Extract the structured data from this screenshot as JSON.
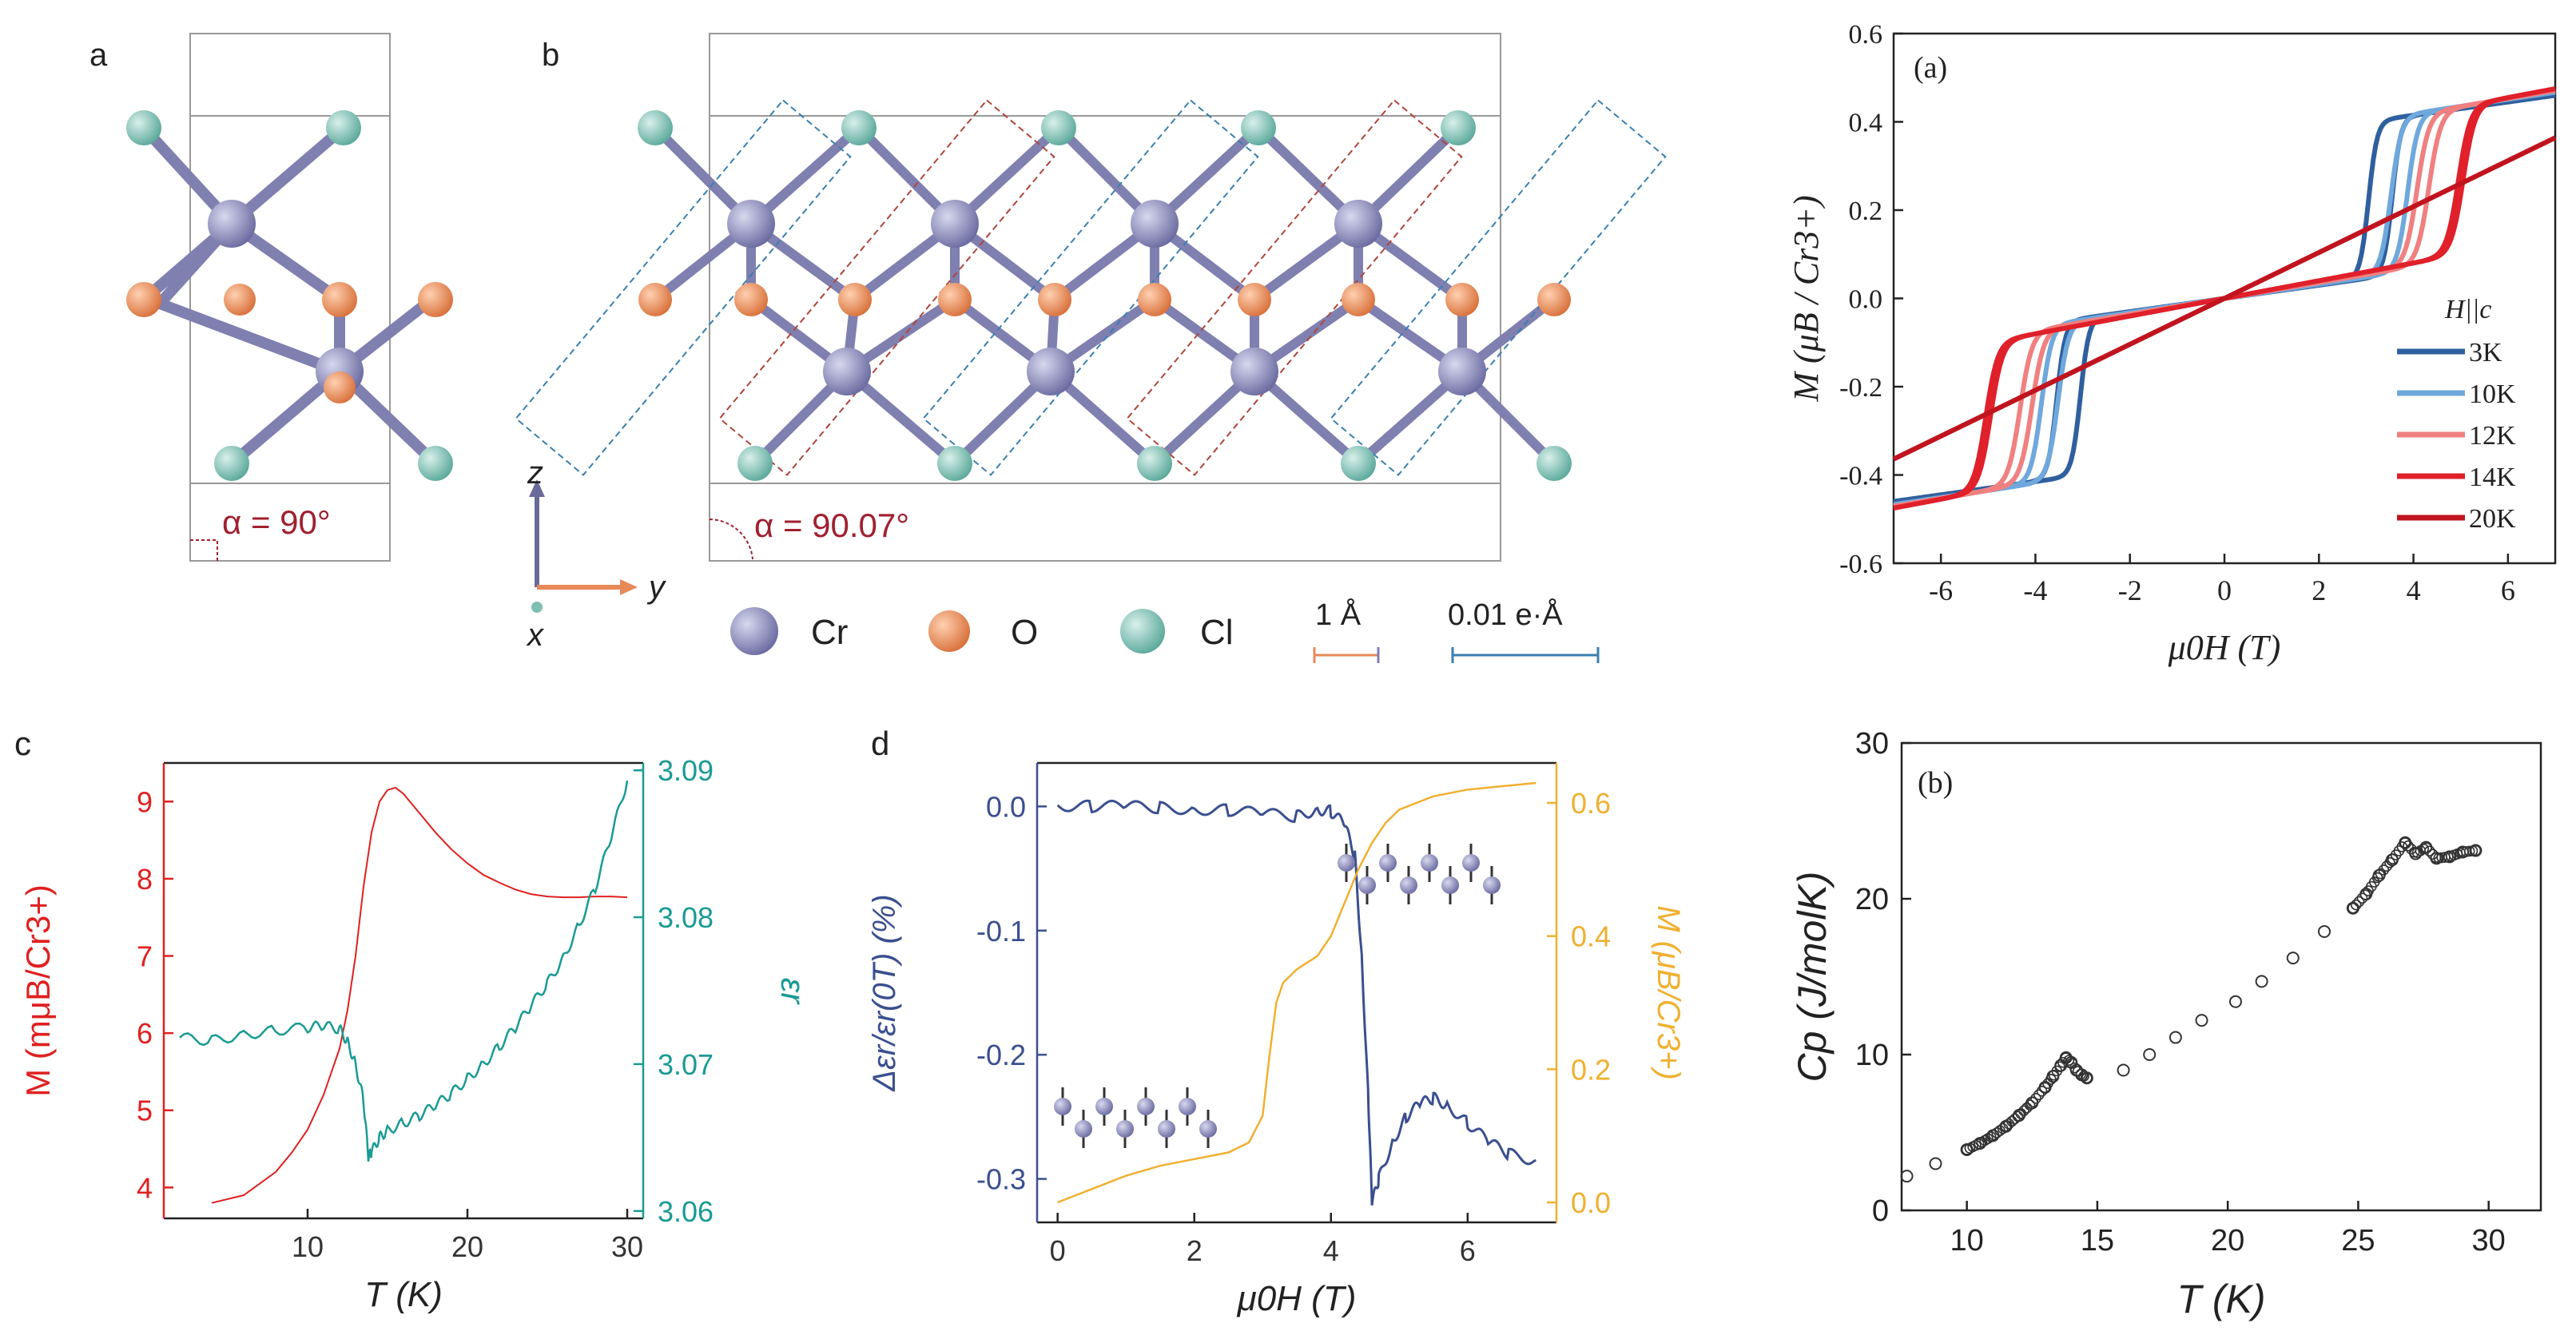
{
  "colors": {
    "cr": "#7f7fb0",
    "o": "#e8895a",
    "cl": "#7fbfb3",
    "red": "#e02020",
    "teal": "#1a9a94",
    "navy": "#3a4f8f",
    "orange": "#f0b030",
    "darkred": "#a02030",
    "blue3k": "#2f5f9e",
    "blue10k": "#6fa8dc",
    "pink12k": "#f08080",
    "red14k": "#e0202a",
    "dred20k": "#c0141e"
  },
  "panel_a": {
    "label": "a",
    "angle": "α = 90°"
  },
  "panel_b": {
    "label": "b",
    "angle": "α = 90.07°"
  },
  "axes_triad": {
    "z": "z",
    "y": "y",
    "x": "x"
  },
  "legend_atoms": {
    "cr": "Cr",
    "o": "O",
    "cl": "Cl",
    "scale_len": "1 Å",
    "scale_charge": "0.01 e·Å"
  },
  "chart_data": [
    {
      "id": "panel-c",
      "type": "line",
      "panel_label": "c",
      "xlabel": "T (K)",
      "xlim": [
        1,
        31
      ],
      "xticks": [
        10,
        20,
        30
      ],
      "ylabel_left": "M (mμB/Cr3+)",
      "ylim_left": [
        3.6,
        9.5
      ],
      "yticks_left": [
        4,
        5,
        6,
        7,
        8,
        9
      ],
      "ylabel_right": "εr",
      "ylim_right": [
        3.0595,
        3.0905
      ],
      "yticks_right": [
        3.06,
        3.07,
        3.08,
        3.09
      ],
      "series": [
        {
          "name": "M",
          "axis": "left",
          "x": [
            4,
            6,
            8,
            9,
            10,
            11,
            12,
            12.5,
            13,
            13.5,
            14,
            14.5,
            15,
            15.5,
            16,
            17,
            18,
            19,
            20,
            21,
            22,
            23,
            24,
            25,
            26,
            27,
            28,
            29,
            30
          ],
          "y": [
            3.8,
            3.9,
            4.2,
            4.45,
            4.75,
            5.2,
            5.8,
            6.3,
            7.0,
            7.9,
            8.6,
            9.0,
            9.15,
            9.18,
            9.1,
            8.85,
            8.6,
            8.38,
            8.2,
            8.05,
            7.95,
            7.86,
            7.8,
            7.77,
            7.76,
            7.76,
            7.77,
            7.77,
            7.76
          ]
        },
        {
          "name": "εr",
          "axis": "right",
          "x": [
            2,
            4,
            6,
            8,
            10,
            11,
            12,
            12.5,
            13,
            13.5,
            13.8,
            14,
            14.5,
            15,
            16,
            17,
            18,
            19,
            20,
            21,
            22,
            23,
            24,
            25,
            26,
            27,
            28,
            29,
            30
          ],
          "y": [
            3.0718,
            3.0716,
            3.072,
            3.0723,
            3.0725,
            3.0726,
            3.0724,
            3.0715,
            3.07,
            3.0675,
            3.0637,
            3.064,
            3.065,
            3.0655,
            3.066,
            3.0665,
            3.0672,
            3.068,
            3.069,
            3.07,
            3.0712,
            3.0725,
            3.074,
            3.0755,
            3.0772,
            3.0795,
            3.082,
            3.0855,
            3.0893
          ]
        }
      ]
    },
    {
      "id": "panel-d",
      "type": "line",
      "panel_label": "d",
      "xlabel": "μ0H (T)",
      "xlim": [
        -0.3,
        7.3
      ],
      "xticks": [
        0,
        2,
        4,
        6
      ],
      "ylabel_left": "Δεr/εr(0T) (%)",
      "ylim_left": [
        -0.335,
        0.035
      ],
      "yticks_left": [
        0.0,
        -0.1,
        -0.2,
        -0.3
      ],
      "ylabel_right": "M (μB/Cr3+)",
      "ylim_right": [
        -0.03,
        0.66
      ],
      "yticks_right": [
        0.0,
        0.2,
        0.4,
        0.6
      ],
      "series": [
        {
          "name": "Δεr/εr(0T)",
          "axis": "left",
          "x": [
            0,
            0.5,
            1,
            1.5,
            2,
            2.5,
            3,
            3.5,
            3.8,
            4,
            4.2,
            4.35,
            4.45,
            4.55,
            4.6,
            4.7,
            4.9,
            5.1,
            5.3,
            5.5,
            5.7,
            6,
            6.3,
            6.6,
            7
          ],
          "y": [
            0.001,
            0.0,
            0.0,
            -0.001,
            -0.002,
            -0.003,
            -0.006,
            -0.008,
            -0.002,
            -0.004,
            -0.015,
            -0.04,
            -0.12,
            -0.24,
            -0.32,
            -0.3,
            -0.27,
            -0.25,
            -0.24,
            -0.235,
            -0.24,
            -0.255,
            -0.27,
            -0.28,
            -0.285
          ]
        },
        {
          "name": "M",
          "axis": "right",
          "x": [
            0,
            0.5,
            1,
            1.5,
            2,
            2.5,
            2.8,
            3.0,
            3.1,
            3.2,
            3.3,
            3.5,
            3.8,
            4,
            4.2,
            4.4,
            4.6,
            4.8,
            5,
            5.5,
            6,
            6.5,
            7
          ],
          "y": [
            0.0,
            0.02,
            0.04,
            0.055,
            0.065,
            0.075,
            0.09,
            0.13,
            0.22,
            0.3,
            0.33,
            0.35,
            0.37,
            0.4,
            0.45,
            0.5,
            0.54,
            0.57,
            0.59,
            0.61,
            0.62,
            0.625,
            0.63
          ]
        }
      ]
    },
    {
      "id": "panel-a-right",
      "type": "line",
      "panel_label": "(a)",
      "xlabel": "μ0H (T)",
      "xlim": [
        -7,
        7
      ],
      "xticks": [
        -6,
        -4,
        -2,
        0,
        2,
        4,
        6
      ],
      "ylabel": "M (μB / Cr3+)",
      "ylim": [
        -0.6,
        0.6
      ],
      "yticks": [
        -0.6,
        -0.4,
        -0.2,
        0.0,
        0.2,
        0.4,
        0.6
      ],
      "legend_title": "H||c",
      "series": [
        {
          "name": "3K",
          "color_key": "blue3k",
          "Ms": 0.46,
          "Hc": 3.3,
          "slope": 0.015,
          "width": 0.18,
          "hyst": 0.5
        },
        {
          "name": "10K",
          "color_key": "blue10k",
          "Ms": 0.46,
          "Hc": 3.7,
          "slope": 0.016,
          "width": 0.22,
          "hyst": 0.35
        },
        {
          "name": "12K",
          "color_key": "pink12k",
          "Ms": 0.45,
          "Hc": 4.2,
          "slope": 0.018,
          "width": 0.25,
          "hyst": 0.25
        },
        {
          "name": "14K",
          "color_key": "red14k",
          "Ms": 0.44,
          "Hc": 5.0,
          "slope": 0.02,
          "width": 0.25,
          "hyst": 0.1
        },
        {
          "name": "20K",
          "color_key": "dred20k",
          "Ms": 0.0,
          "Hc": 0.0,
          "slope": 0.052,
          "width": 1,
          "hyst": 0
        }
      ]
    },
    {
      "id": "panel-b-right",
      "type": "scatter",
      "panel_label": "(b)",
      "xlabel": "T (K)",
      "xlim": [
        7.5,
        32
      ],
      "xticks": [
        10,
        15,
        20,
        25,
        30
      ],
      "ylabel": "Cp (J/molK)",
      "ylim": [
        0,
        30
      ],
      "yticks": [
        0,
        10,
        20,
        30
      ],
      "series": [
        {
          "name": "Cp",
          "x": [
            7.7,
            8.8,
            10.0,
            10.5,
            11.0,
            11.5,
            12.0,
            12.5,
            13.0,
            13.3,
            13.6,
            13.8,
            14.0,
            14.2,
            14.4,
            14.6,
            16.0,
            17.0,
            18.0,
            19.0,
            20.3,
            21.3,
            22.5,
            23.7,
            24.8,
            25.3,
            25.8,
            26.3,
            26.8,
            27.2,
            27.6,
            28.0,
            28.5,
            29.0,
            29.5
          ],
          "y": [
            2.2,
            3.0,
            3.9,
            4.3,
            4.8,
            5.4,
            6.1,
            6.9,
            7.9,
            8.6,
            9.3,
            9.8,
            9.5,
            9.0,
            8.7,
            8.5,
            9.0,
            10.0,
            11.1,
            12.2,
            13.4,
            14.7,
            16.2,
            17.9,
            19.4,
            20.3,
            21.5,
            22.5,
            23.6,
            22.9,
            23.3,
            22.6,
            22.7,
            23.0,
            23.1
          ]
        }
      ]
    }
  ]
}
